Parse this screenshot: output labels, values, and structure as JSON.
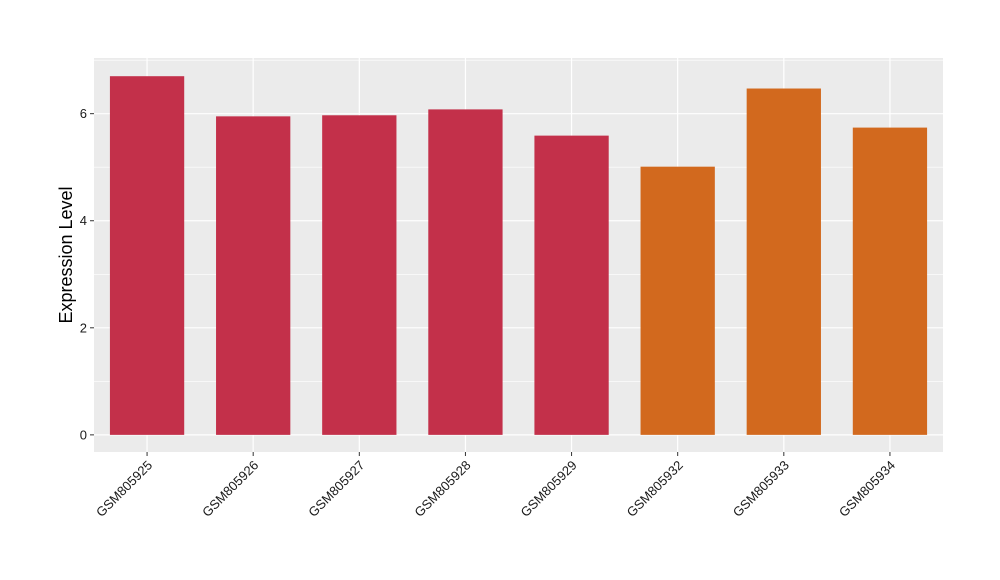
{
  "chart_data": {
    "type": "bar",
    "title": "",
    "xlabel": "",
    "ylabel": "Expression Level",
    "categories": [
      "GSM805925",
      "GSM805926",
      "GSM805927",
      "GSM805928",
      "GSM805929",
      "GSM805932",
      "GSM805933",
      "GSM805934"
    ],
    "values": [
      6.7,
      5.95,
      5.97,
      6.08,
      5.59,
      5.01,
      6.47,
      5.74
    ],
    "bar_colors": [
      "#C3304A",
      "#C3304A",
      "#C3304A",
      "#C3304A",
      "#C3304A",
      "#D2691E",
      "#D2691E",
      "#D2691E"
    ],
    "ylim": [
      -0.32,
      7.04
    ],
    "yticks": [
      0,
      2,
      4,
      6
    ],
    "grid": true,
    "legend": "none",
    "panel_background": "#EBEBEB",
    "grid_color": "#FFFFFF"
  }
}
